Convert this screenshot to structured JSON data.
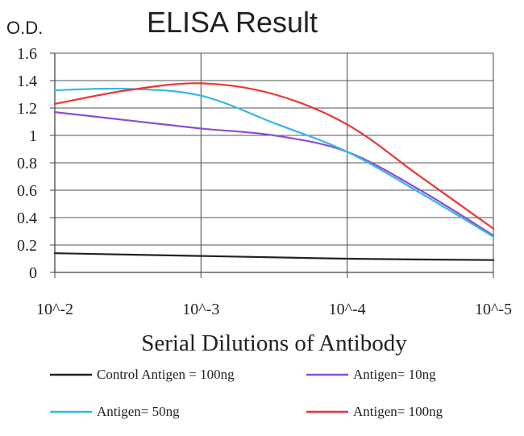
{
  "chart_data": {
    "type": "line",
    "title": "ELISA Result",
    "ylabel": "O.D.",
    "xlabel": "Serial Dilutions of Antibody",
    "categories": [
      "10^-2",
      "10^-3",
      "10^-4",
      "10^-5"
    ],
    "x_range": [
      0,
      3
    ],
    "ylim": [
      0,
      1.6
    ],
    "yticks": [
      0,
      0.2,
      0.4,
      0.6,
      0.8,
      1,
      1.2,
      1.4,
      1.6
    ],
    "ytick_labels": [
      "0",
      "0.2",
      "0.4",
      "0.6",
      "0.8",
      "1",
      "1.2",
      "1.4",
      "1.6"
    ],
    "grid": true,
    "legend_position": "bottom",
    "series": [
      {
        "name": "Control Antigen = 100ng",
        "color": "#222222",
        "points": [
          [
            0,
            0.14
          ],
          [
            1,
            0.12
          ],
          [
            2,
            0.1
          ],
          [
            3,
            0.09
          ]
        ]
      },
      {
        "name": "Antigen= 10ng",
        "color": "#8a4fd2",
        "points": [
          [
            0,
            1.17
          ],
          [
            0.5,
            1.11
          ],
          [
            1,
            1.05
          ],
          [
            1.5,
            1.0
          ],
          [
            2,
            0.88
          ],
          [
            2.5,
            0.6
          ],
          [
            3,
            0.27
          ]
        ]
      },
      {
        "name": "Antigen= 50ng",
        "color": "#33b7ea",
        "points": [
          [
            0,
            1.33
          ],
          [
            0.5,
            1.34
          ],
          [
            1,
            1.29
          ],
          [
            1.5,
            1.09
          ],
          [
            2,
            0.88
          ],
          [
            2.5,
            0.58
          ],
          [
            3,
            0.26
          ]
        ]
      },
      {
        "name": "Antigen= 100ng",
        "color": "#ee3333",
        "points": [
          [
            0,
            1.23
          ],
          [
            0.5,
            1.33
          ],
          [
            1,
            1.38
          ],
          [
            1.5,
            1.3
          ],
          [
            2,
            1.08
          ],
          [
            2.5,
            0.7
          ],
          [
            3,
            0.32
          ]
        ]
      }
    ]
  }
}
